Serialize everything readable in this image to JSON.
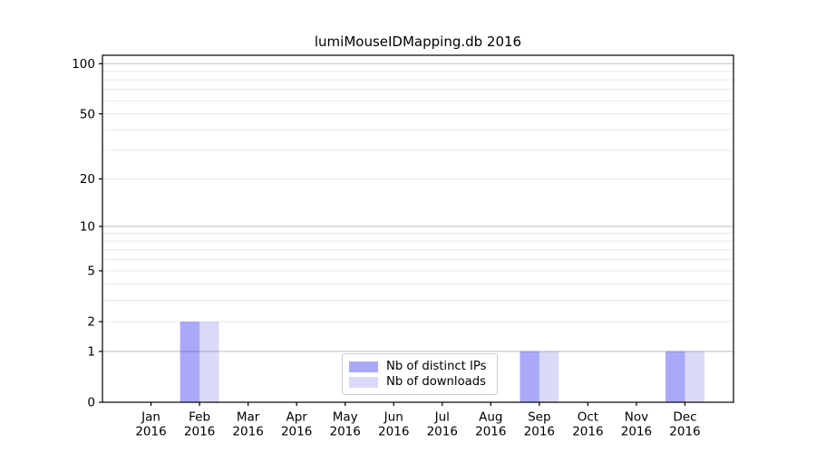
{
  "figure": {
    "background": "#ffffff"
  },
  "chart_data": {
    "type": "bar",
    "title": "lumiMouseIDMapping.db 2016",
    "categories": [
      {
        "month": "Jan",
        "year": "2016"
      },
      {
        "month": "Feb",
        "year": "2016"
      },
      {
        "month": "Mar",
        "year": "2016"
      },
      {
        "month": "Apr",
        "year": "2016"
      },
      {
        "month": "May",
        "year": "2016"
      },
      {
        "month": "Jun",
        "year": "2016"
      },
      {
        "month": "Jul",
        "year": "2016"
      },
      {
        "month": "Aug",
        "year": "2016"
      },
      {
        "month": "Sep",
        "year": "2016"
      },
      {
        "month": "Oct",
        "year": "2016"
      },
      {
        "month": "Nov",
        "year": "2016"
      },
      {
        "month": "Dec",
        "year": "2016"
      }
    ],
    "series": [
      {
        "name": "Nb of distinct IPs",
        "color": "#a9a9f8",
        "fill_rgba": "rgba(10,10,235,0.35)",
        "values": [
          0,
          2,
          0,
          0,
          0,
          0,
          0,
          0,
          1,
          0,
          0,
          1
        ]
      },
      {
        "name": "Nb of downloads",
        "color": "#dadaf7",
        "fill_rgba": "rgba(10,10,205,0.15)",
        "values": [
          0,
          2,
          0,
          0,
          0,
          0,
          0,
          0,
          1,
          0,
          0,
          1
        ]
      }
    ],
    "xlabel": "",
    "ylabel": "",
    "yscale": "log1p",
    "ylim": [
      0,
      112.3
    ],
    "yticks": [
      100,
      50,
      20,
      10,
      5,
      2,
      1,
      0
    ],
    "grid_major": [
      1,
      10,
      100
    ],
    "grid_minor": [
      2,
      3,
      4,
      5,
      6,
      7,
      8,
      9,
      20,
      30,
      40,
      50,
      60,
      70,
      80,
      90
    ],
    "legend": {
      "position": "lower center",
      "entries": [
        "Nb of distinct IPs",
        "Nb of downloads"
      ]
    },
    "colors": {
      "spine": "#000000",
      "grid_major": "#bdbdbd",
      "grid_minor": "#e8e8e8",
      "tick_text": "#000000",
      "legend_border": "#cccccc",
      "plot_background": "#ffffff"
    }
  }
}
